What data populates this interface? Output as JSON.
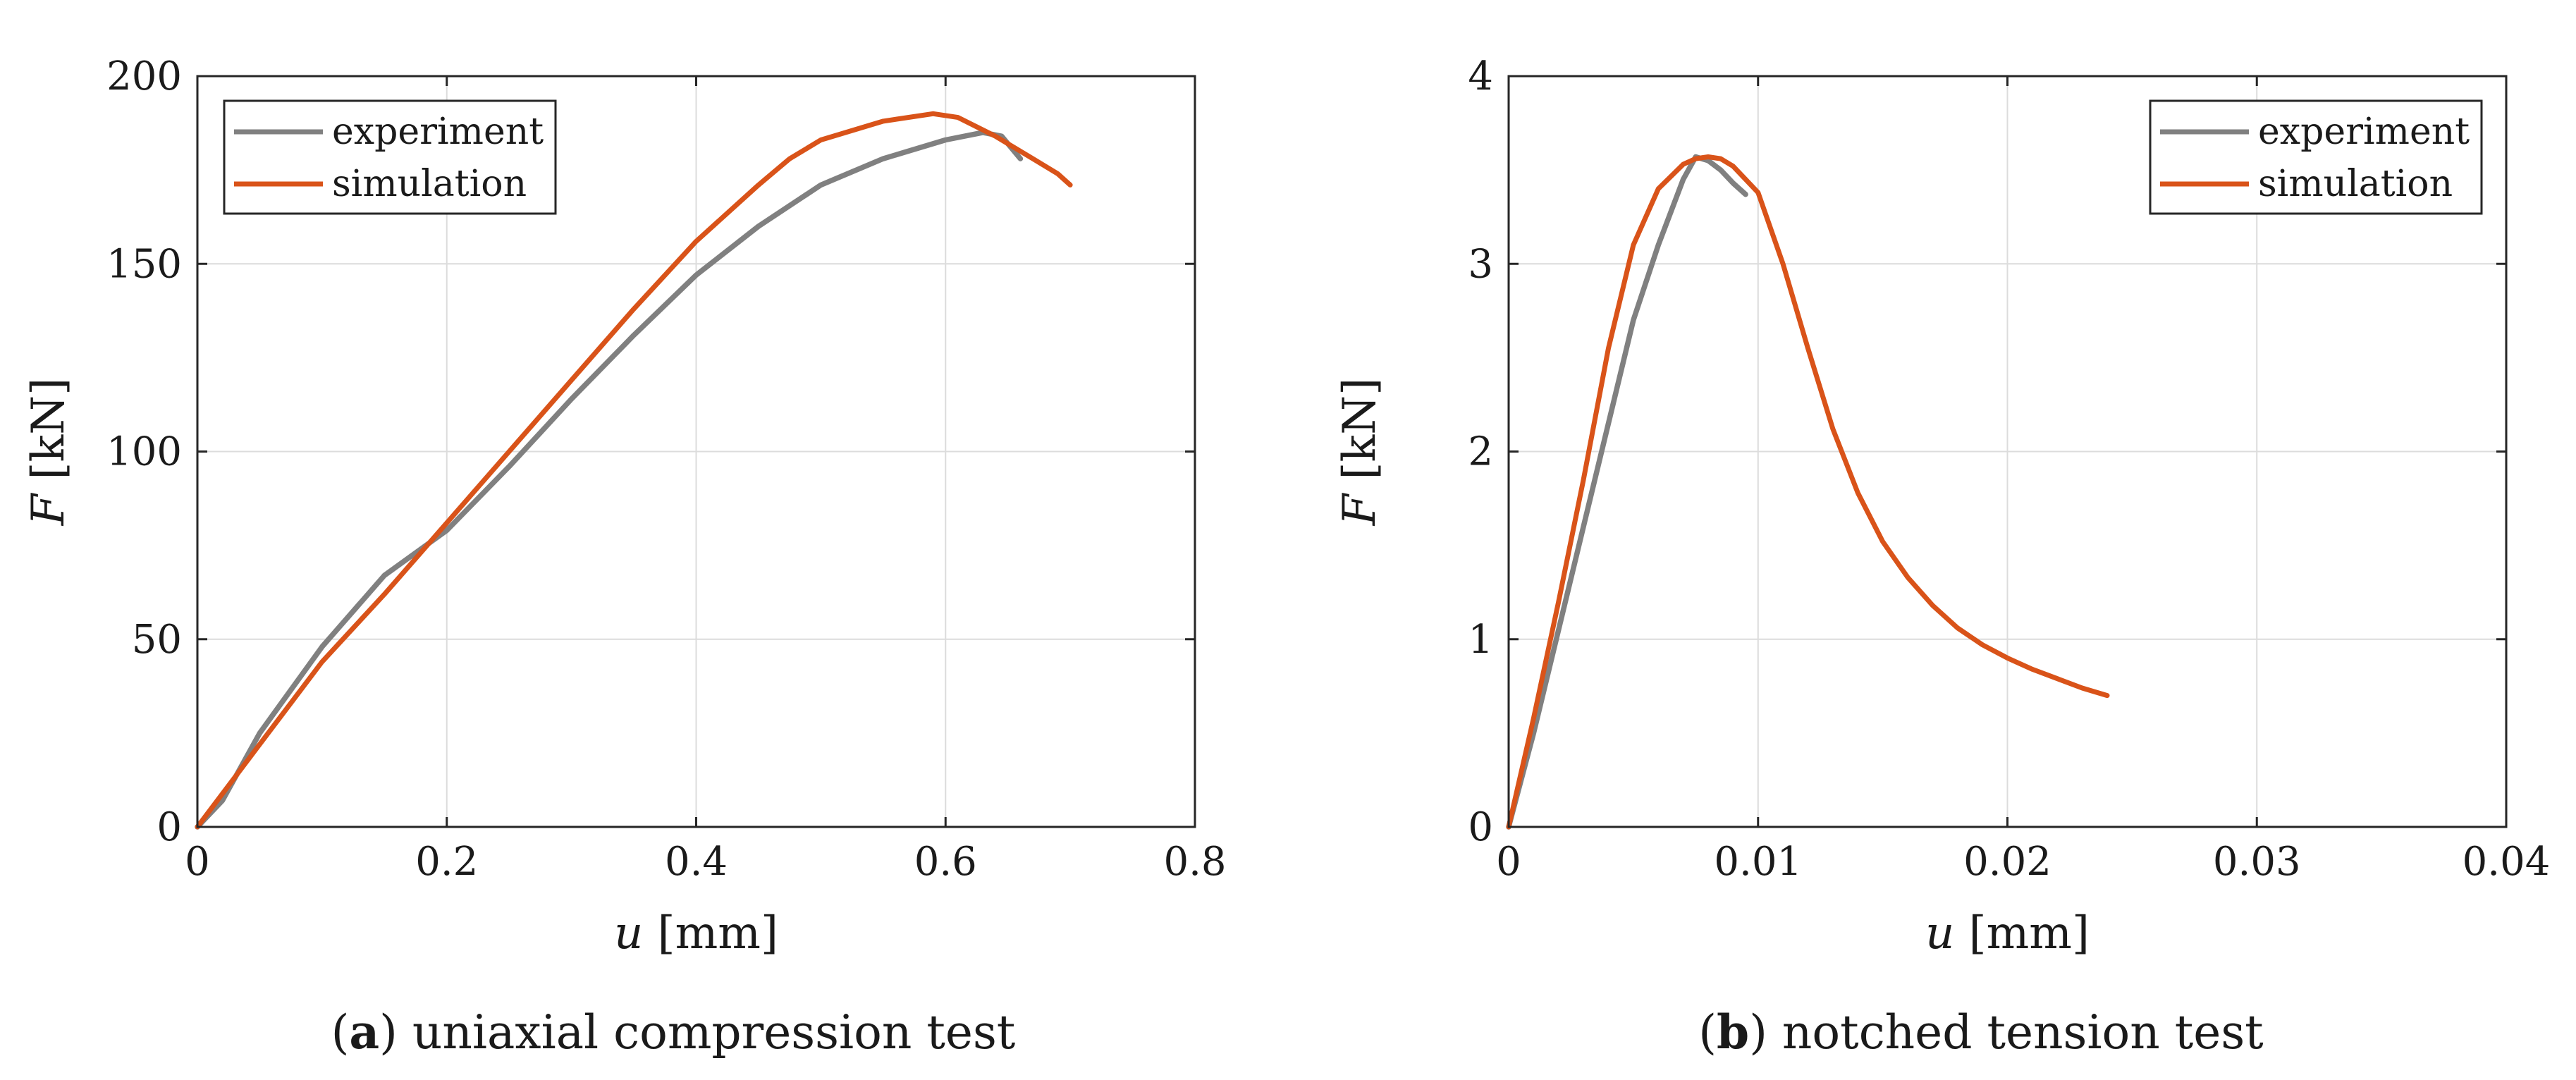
{
  "colors": {
    "experiment": "#808080",
    "simulation": "#D95319",
    "grid": "#dcdcdc",
    "axis": "#262626"
  },
  "captions": [
    {
      "letter": "a",
      "text": " uniaxial compression test"
    },
    {
      "letter": "b",
      "text": " notched tension test"
    }
  ],
  "chart_data": [
    {
      "type": "line",
      "title": "",
      "xlabel_var": "u",
      "xlabel_unit": " [mm]",
      "ylabel_var": "F",
      "ylabel_unit": " [kN]",
      "xlim": [
        0,
        0.8
      ],
      "ylim": [
        0,
        200
      ],
      "xticks": [
        0,
        0.2,
        0.4,
        0.6,
        0.8
      ],
      "xtick_labels": [
        "0",
        "0.2",
        "0.4",
        "0.6",
        "0.8"
      ],
      "yticks": [
        0,
        50,
        100,
        150,
        200
      ],
      "ytick_labels": [
        "0",
        "50",
        "100",
        "150",
        "200"
      ],
      "grid": true,
      "legend_position": "top-left",
      "series": [
        {
          "name": "experiment",
          "color_key": "experiment",
          "x": [
            0,
            0.02,
            0.05,
            0.1,
            0.15,
            0.2,
            0.25,
            0.3,
            0.35,
            0.4,
            0.45,
            0.5,
            0.55,
            0.6,
            0.63,
            0.645,
            0.66
          ],
          "y": [
            0,
            7,
            25,
            48,
            67,
            79,
            96,
            114,
            131,
            147,
            160,
            171,
            178,
            183,
            185,
            184,
            178
          ]
        },
        {
          "name": "simulation",
          "color_key": "simulation",
          "x": [
            0,
            0.05,
            0.1,
            0.15,
            0.2,
            0.25,
            0.3,
            0.35,
            0.4,
            0.45,
            0.475,
            0.5,
            0.55,
            0.59,
            0.61,
            0.64,
            0.67,
            0.69,
            0.7
          ],
          "y": [
            0,
            22,
            44,
            62,
            81,
            100,
            119,
            138,
            156,
            171,
            178,
            183,
            188,
            190,
            189,
            184,
            178,
            174,
            171
          ]
        }
      ]
    },
    {
      "type": "line",
      "title": "",
      "xlabel_var": "u",
      "xlabel_unit": " [mm]",
      "ylabel_var": "F",
      "ylabel_unit": " [kN]",
      "xlim": [
        0,
        0.04
      ],
      "ylim": [
        0,
        4
      ],
      "xticks": [
        0,
        0.01,
        0.02,
        0.03,
        0.04
      ],
      "xtick_labels": [
        "0",
        "0.01",
        "0.02",
        "0.03",
        "0.04"
      ],
      "yticks": [
        0,
        1,
        2,
        3,
        4
      ],
      "ytick_labels": [
        "0",
        "1",
        "2",
        "3",
        "4"
      ],
      "grid": true,
      "legend_position": "top-right",
      "series": [
        {
          "name": "experiment",
          "color_key": "experiment",
          "x": [
            0,
            0.001,
            0.002,
            0.003,
            0.004,
            0.005,
            0.006,
            0.007,
            0.0075,
            0.008,
            0.0085,
            0.009,
            0.0095
          ],
          "y": [
            0,
            0.5,
            1.05,
            1.6,
            2.15,
            2.7,
            3.1,
            3.45,
            3.57,
            3.55,
            3.5,
            3.43,
            3.37
          ]
        },
        {
          "name": "simulation",
          "color_key": "simulation",
          "x": [
            0,
            0.001,
            0.002,
            0.003,
            0.004,
            0.005,
            0.006,
            0.007,
            0.0075,
            0.008,
            0.0085,
            0.009,
            0.01,
            0.011,
            0.012,
            0.013,
            0.014,
            0.015,
            0.016,
            0.017,
            0.018,
            0.019,
            0.02,
            0.021,
            0.022,
            0.023,
            0.024
          ],
          "y": [
            0,
            0.58,
            1.2,
            1.85,
            2.55,
            3.1,
            3.4,
            3.53,
            3.56,
            3.57,
            3.56,
            3.52,
            3.38,
            3.0,
            2.55,
            2.12,
            1.78,
            1.52,
            1.33,
            1.18,
            1.06,
            0.97,
            0.9,
            0.84,
            0.79,
            0.74,
            0.7
          ]
        }
      ]
    }
  ]
}
